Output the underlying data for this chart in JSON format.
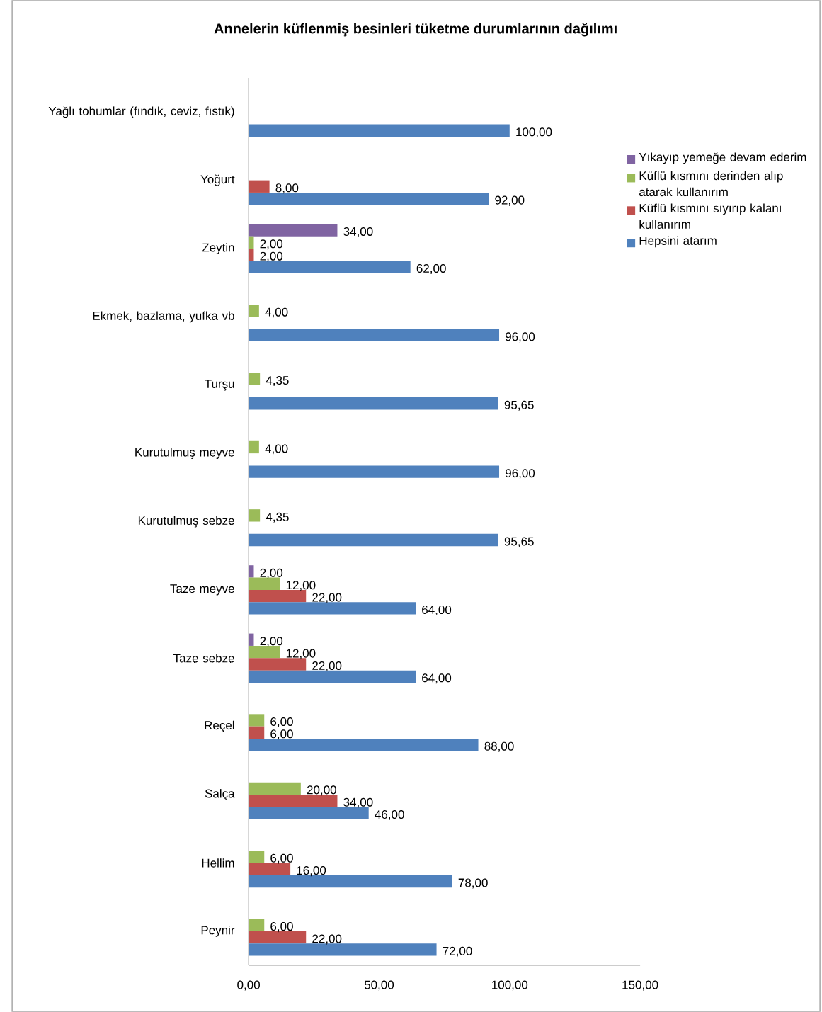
{
  "chart_data": {
    "type": "bar",
    "orientation": "horizontal",
    "title": "Annelerin küflenmiş besinleri tüketme durumlarının dağılımı",
    "categories": [
      "Yağlı tohumlar (fındık, ceviz, fıstık)",
      "Yoğurt",
      "Zeytin",
      "Ekmek, bazlama, yufka vb",
      "Turşu",
      "Kurutulmuş meyve",
      "Kurutulmuş sebze",
      "Taze meyve",
      "Taze sebze",
      "Reçel",
      "Salça",
      "Hellim",
      "Peynir"
    ],
    "series": [
      {
        "name": "Yıkayıp yemeğe devam ederim",
        "color": "#8064a2",
        "values": [
          null,
          null,
          34,
          null,
          null,
          null,
          null,
          2,
          2,
          null,
          null,
          null,
          null
        ],
        "value_labels": [
          null,
          null,
          "34,00",
          null,
          null,
          null,
          null,
          "2,00",
          "2,00",
          null,
          null,
          null,
          null
        ]
      },
      {
        "name": "Küflü kısmını derinden alıp atarak kullanırım",
        "color": "#9bbb59",
        "values": [
          null,
          null,
          2,
          4,
          4.35,
          4,
          4.35,
          12,
          12,
          6,
          20,
          6,
          6
        ],
        "value_labels": [
          null,
          null,
          "2,00",
          "4,00",
          "4,35",
          "4,00",
          "4,35",
          "12,00",
          "12,00",
          "6,00",
          "20,00",
          "6,00",
          "6,00"
        ]
      },
      {
        "name": "Küflü kısmını sıyırıp kalanı kullanırım",
        "color": "#c0504d",
        "values": [
          null,
          8,
          2,
          null,
          null,
          null,
          null,
          22,
          22,
          6,
          34,
          16,
          22
        ],
        "value_labels": [
          null,
          "8,00",
          "2,00",
          null,
          null,
          null,
          null,
          "22,00",
          "22,00",
          "6,00",
          "34,00",
          "16,00",
          "22,00"
        ]
      },
      {
        "name": "Hepsini atarım",
        "color": "#4f81bd",
        "values": [
          100,
          92,
          62,
          96,
          95.65,
          96,
          95.65,
          64,
          64,
          88,
          46,
          78,
          72
        ],
        "value_labels": [
          "100,00",
          "92,00",
          "62,00",
          "96,00",
          "95,65",
          "96,00",
          "95,65",
          "64,00",
          "64,00",
          "88,00",
          "46,00",
          "78,00",
          "72,00"
        ]
      }
    ],
    "xlim": [
      0,
      150
    ],
    "xticks": [
      {
        "value": 0,
        "label": "0,00"
      },
      {
        "value": 50,
        "label": "50,00"
      },
      {
        "value": 100,
        "label": "100,00"
      },
      {
        "value": 150,
        "label": "150,00"
      }
    ],
    "legend": "right"
  }
}
